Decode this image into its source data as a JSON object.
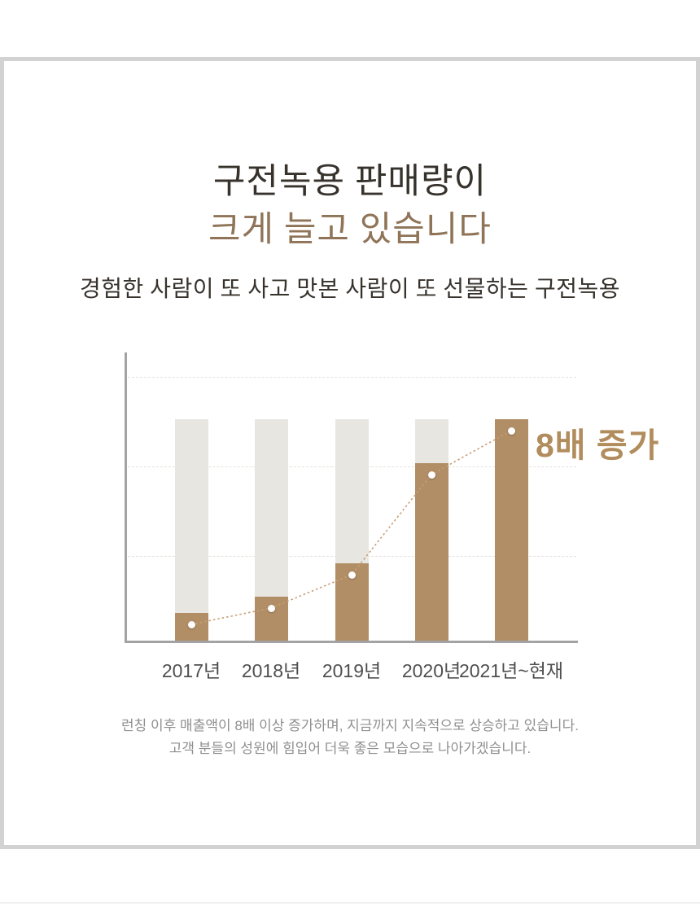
{
  "header": {
    "title_line1": "구전녹용 판매량이",
    "title_line2": "크게 늘고 있습니다",
    "subtitle": "경험한 사람이 또 사고 맛본 사람이 또 선물하는 구전녹용"
  },
  "chart_data": {
    "type": "bar",
    "categories": [
      "2017년",
      "2018년",
      "2019년",
      "2020년",
      "2021년~현재"
    ],
    "values": [
      1.0,
      1.6,
      2.8,
      6.4,
      8.0
    ],
    "background_bar_value": 8.0,
    "annotation": "8배 증가",
    "title": "",
    "xlabel": "",
    "ylabel": "",
    "ylim": [
      0,
      8
    ],
    "value_axis_tick_labels": [],
    "grid": true,
    "gridline_count": 3,
    "legend": "none",
    "overlay": "dotted trend line with white dot markers at each bar value"
  },
  "footer": {
    "line1": "런칭 이후 매출액이 8배 이상 증가하며, 지금까지 지속적으로 상승하고 있습니다.",
    "line2": "고객 분들의 성원에 힘입어 더욱 좋은 모습으로 나아가겠습니다."
  },
  "colors": {
    "bar_brown": "#b18e66",
    "bar_gray": "#e8e6e1",
    "line_brown": "#c79e76",
    "annotation_brown": "#b18c5d",
    "title_dark": "#37322c",
    "title_brown": "#8f7457",
    "axis_gray": "#a3a3a3",
    "grid_gray": "#e4e2dd",
    "label_gray": "#4f4f4f",
    "footer_gray": "#8f8f8f",
    "frame_gray": "#d2d2d2"
  }
}
